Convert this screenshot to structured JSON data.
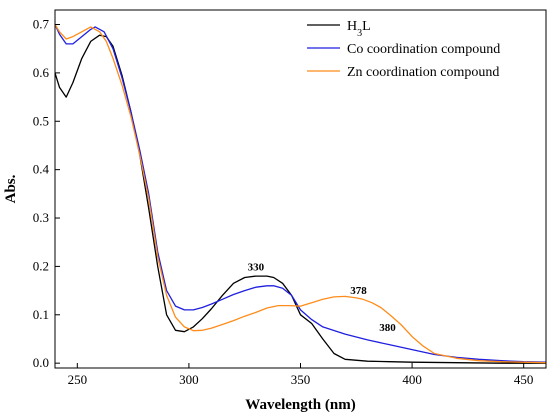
{
  "chart_data": {
    "type": "line",
    "title": "",
    "xlabel": "Wavelength (nm)",
    "ylabel": "Abs.",
    "xlim": [
      240,
      460
    ],
    "ylim": [
      -0.01,
      0.73
    ],
    "x_ticks": [
      250,
      300,
      350,
      400,
      450
    ],
    "x_tick_labels": [
      "250",
      "300",
      "350",
      "400",
      "450"
    ],
    "y_ticks": [
      0.0,
      0.1,
      0.2,
      0.3,
      0.4,
      0.5,
      0.6,
      0.7
    ],
    "y_tick_labels": [
      "0.0",
      "0.1",
      "0.2",
      "0.3",
      "0.4",
      "0.5",
      "0.6",
      "0.7"
    ],
    "grid": false,
    "legend_position": "top-right",
    "legend": [
      {
        "label_main": "H",
        "label_sub": "3",
        "label_tail": "L"
      },
      {
        "label_main": "Co coordination compound",
        "label_sub": "",
        "label_tail": ""
      },
      {
        "label_main": "Zn coordination compound",
        "label_sub": "",
        "label_tail": ""
      }
    ],
    "series": [
      {
        "name": "H3L",
        "color": "#000000",
        "x": [
          240,
          242,
          245,
          248,
          252,
          256,
          260,
          263,
          266,
          270,
          274,
          278,
          282,
          286,
          290,
          294,
          298,
          302,
          306,
          310,
          315,
          320,
          325,
          330,
          335,
          338,
          342,
          346,
          350,
          355,
          360,
          365,
          370,
          380,
          390,
          400,
          420,
          440,
          460
        ],
        "y": [
          0.6,
          0.57,
          0.55,
          0.58,
          0.63,
          0.665,
          0.678,
          0.675,
          0.655,
          0.595,
          0.52,
          0.43,
          0.32,
          0.2,
          0.1,
          0.068,
          0.065,
          0.075,
          0.092,
          0.112,
          0.14,
          0.165,
          0.177,
          0.18,
          0.18,
          0.177,
          0.165,
          0.14,
          0.1,
          0.082,
          0.05,
          0.02,
          0.008,
          0.004,
          0.003,
          0.002,
          0.001,
          0.0,
          0.0
        ]
      },
      {
        "name": "Co coordination compound",
        "color": "#1f1fe0",
        "x": [
          240,
          242,
          245,
          248,
          252,
          256,
          258,
          262,
          266,
          270,
          274,
          278,
          282,
          286,
          290,
          294,
          298,
          302,
          306,
          310,
          315,
          320,
          325,
          330,
          335,
          338,
          342,
          346,
          350,
          355,
          360,
          370,
          380,
          390,
          400,
          410,
          420,
          430,
          440,
          450,
          460
        ],
        "y": [
          0.7,
          0.68,
          0.66,
          0.66,
          0.675,
          0.69,
          0.695,
          0.685,
          0.65,
          0.59,
          0.52,
          0.44,
          0.35,
          0.23,
          0.15,
          0.118,
          0.11,
          0.11,
          0.115,
          0.122,
          0.132,
          0.142,
          0.15,
          0.157,
          0.16,
          0.16,
          0.155,
          0.14,
          0.11,
          0.09,
          0.075,
          0.06,
          0.048,
          0.038,
          0.028,
          0.018,
          0.012,
          0.008,
          0.005,
          0.003,
          0.002
        ]
      },
      {
        "name": "Zn coordination compound",
        "color": "#ff8c1a",
        "x": [
          240,
          242,
          245,
          248,
          252,
          256,
          260,
          263,
          266,
          270,
          274,
          278,
          282,
          286,
          290,
          294,
          298,
          302,
          306,
          310,
          315,
          320,
          325,
          330,
          335,
          340,
          345,
          350,
          355,
          360,
          365,
          370,
          375,
          378,
          382,
          386,
          390,
          395,
          400,
          405,
          410,
          420,
          430,
          440,
          450,
          460
        ],
        "y": [
          0.7,
          0.685,
          0.67,
          0.675,
          0.685,
          0.695,
          0.685,
          0.665,
          0.63,
          0.575,
          0.51,
          0.43,
          0.34,
          0.22,
          0.14,
          0.095,
          0.075,
          0.067,
          0.068,
          0.072,
          0.08,
          0.088,
          0.097,
          0.105,
          0.114,
          0.119,
          0.119,
          0.118,
          0.125,
          0.132,
          0.137,
          0.138,
          0.135,
          0.132,
          0.125,
          0.115,
          0.1,
          0.08,
          0.055,
          0.035,
          0.02,
          0.01,
          0.005,
          0.003,
          0.002,
          0.001
        ]
      }
    ],
    "annotations": [
      {
        "text": "330",
        "x": 330,
        "y": 0.192
      },
      {
        "text": "378",
        "x": 376,
        "y": 0.143
      },
      {
        "text": "380",
        "x": 389,
        "y": 0.066
      }
    ]
  }
}
